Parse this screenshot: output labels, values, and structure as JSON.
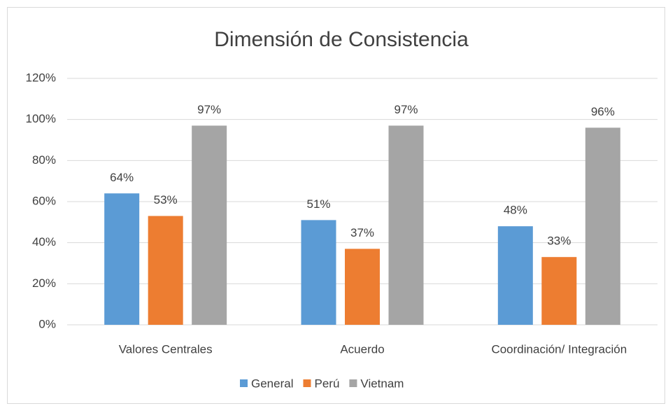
{
  "chart_data": {
    "type": "bar",
    "title": "Dimensión de Consistencia",
    "categories": [
      "Valores Centrales",
      "Acuerdo",
      "Coordinación/ Integración"
    ],
    "series": [
      {
        "name": "General",
        "color": "#5b9bd5",
        "values": [
          64,
          51,
          48
        ],
        "value_labels": [
          "64%",
          "51%",
          "48%"
        ]
      },
      {
        "name": "Perú",
        "color": "#ed7d31",
        "values": [
          53,
          37,
          33
        ],
        "value_labels": [
          "53%",
          "37%",
          "33%"
        ]
      },
      {
        "name": "Vietnam",
        "color": "#a5a5a5",
        "values": [
          97,
          97,
          96
        ],
        "value_labels": [
          "97%",
          "97%",
          "96%"
        ]
      }
    ],
    "ylim": [
      0,
      120
    ],
    "yticks": [
      {
        "value": 0,
        "label": "0%"
      },
      {
        "value": 20,
        "label": "20%"
      },
      {
        "value": 40,
        "label": "40%"
      },
      {
        "value": 60,
        "label": "60%"
      },
      {
        "value": 80,
        "label": "80%"
      },
      {
        "value": 100,
        "label": "100%"
      },
      {
        "value": 120,
        "label": "120%"
      }
    ],
    "grid": true,
    "legend": "bottom"
  }
}
